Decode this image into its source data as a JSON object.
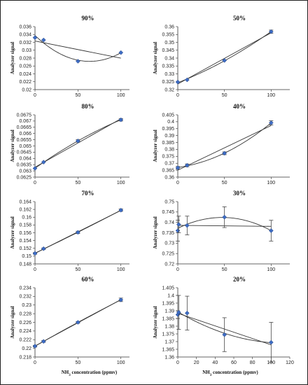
{
  "figure": {
    "xlabel_prefix": "NH",
    "xlabel_sub": "3",
    "xlabel_suffix": " concentration (ppmv)"
  },
  "chart_data": [
    {
      "type": "scatter",
      "title": "90%",
      "ylabel": "Analyzer signal",
      "xlim": [
        0,
        120
      ],
      "ylim": [
        0.02,
        0.036
      ],
      "yticks": [
        "0.02",
        "0.022",
        "0.024",
        "0.026",
        "0.028",
        "0.03",
        "0.032",
        "0.034",
        "0.036"
      ],
      "x": [
        0,
        10,
        50,
        100
      ],
      "y": [
        0.0332,
        0.0326,
        0.0272,
        0.0294
      ],
      "err": [
        0,
        0,
        0,
        0
      ],
      "fit": "quadratic"
    },
    {
      "type": "scatter",
      "title": "50%",
      "ylabel": "Analyzer signal",
      "xlim": [
        0,
        120
      ],
      "ylim": [
        0.32,
        0.36
      ],
      "yticks": [
        "0.32",
        "0.325",
        "0.33",
        "0.335",
        "0.34",
        "0.345",
        "0.35",
        "0.355",
        "0.36"
      ],
      "x": [
        0,
        10,
        50,
        100
      ],
      "y": [
        0.3248,
        0.3262,
        0.3385,
        0.3568
      ],
      "err": [
        0,
        0,
        0,
        0.001
      ],
      "fit": "quadratic"
    },
    {
      "type": "scatter",
      "title": "80%",
      "ylabel": "Analyzer signal",
      "xlim": [
        0,
        120
      ],
      "ylim": [
        0.0625,
        0.0675
      ],
      "yticks": [
        "0.0625",
        "0.063",
        "0.0635",
        "0.064",
        "0.0645",
        "0.065",
        "0.0655",
        "0.066",
        "0.0665",
        "0.067",
        "0.0675"
      ],
      "x": [
        0,
        10,
        50,
        100
      ],
      "y": [
        0.0632,
        0.0637,
        0.0654,
        0.0671
      ],
      "err": [
        0,
        0,
        0.0001,
        0.0001
      ],
      "fit": "quadratic"
    },
    {
      "type": "scatter",
      "title": "40%",
      "ylabel": "Analyzer signal",
      "xlim": [
        0,
        120
      ],
      "ylim": [
        0.36,
        0.405
      ],
      "yticks": [
        "0.36",
        "0.365",
        "0.37",
        "0.375",
        "0.38",
        "0.385",
        "0.39",
        "0.395",
        "0.4",
        "0.405"
      ],
      "x": [
        0,
        10,
        50,
        100
      ],
      "y": [
        0.3667,
        0.3685,
        0.3772,
        0.3992
      ],
      "err": [
        0.001,
        0.001,
        0.001,
        0.0015
      ],
      "fit": "quadratic"
    },
    {
      "type": "scatter",
      "title": "70%",
      "ylabel": "Analyzer signal",
      "xlim": [
        0,
        120
      ],
      "ylim": [
        0.148,
        0.164
      ],
      "yticks": [
        "0.148",
        "0.15",
        "0.152",
        "0.154",
        "0.156",
        "0.158",
        "0.16",
        "0.162",
        "0.164"
      ],
      "x": [
        0,
        10,
        50,
        100
      ],
      "y": [
        0.1507,
        0.1519,
        0.1561,
        0.1618
      ],
      "err": [
        0.0002,
        0.0002,
        0.0003,
        0.0003
      ],
      "fit": "quadratic"
    },
    {
      "type": "scatter",
      "title": "30%",
      "ylabel": "Analyzer signal",
      "xlim": [
        0,
        120
      ],
      "ylim": [
        0.72,
        0.75
      ],
      "yticks": [
        "0.72",
        "0.725",
        "0.73",
        "0.735",
        "0.74",
        "0.745",
        "0.75"
      ],
      "x": [
        0,
        1,
        10,
        50,
        100
      ],
      "y": [
        0.736,
        0.739,
        0.7385,
        0.7425,
        0.736
      ],
      "err": [
        0.005,
        0.004,
        0.0045,
        0.005,
        0.005
      ],
      "fit": "both"
    },
    {
      "type": "scatter",
      "title": "60%",
      "ylabel": "Analyzer signal",
      "xlim": [
        0,
        120
      ],
      "ylim": [
        0.218,
        0.234
      ],
      "yticks": [
        "0.218",
        "0.22",
        "0.222",
        "0.224",
        "0.226",
        "0.228",
        "0.23",
        "0.232",
        "0.234"
      ],
      "x": [
        0,
        10,
        50,
        100
      ],
      "y": [
        0.2205,
        0.2216,
        0.226,
        0.2312
      ],
      "err": [
        0.0002,
        0.0002,
        0.0002,
        0.0004
      ],
      "fit": "quadratic"
    },
    {
      "type": "scatter",
      "title": "20%",
      "ylabel": "Analyzer signal",
      "xlim": [
        0,
        120
      ],
      "ylim": [
        1.36,
        1.405
      ],
      "yticks": [
        "1.36",
        "1.365",
        "1.37",
        "1.375",
        "1.38",
        "1.385",
        "1.39",
        "1.395",
        "1.4",
        "1.405"
      ],
      "xticks": [
        "0",
        "20",
        "40",
        "60",
        "80",
        "100",
        "120"
      ],
      "x": [
        0,
        1,
        10,
        50,
        100
      ],
      "y": [
        1.3875,
        1.389,
        1.3885,
        1.3745,
        1.3695
      ],
      "err": [
        0.0025,
        0.011,
        0.011,
        0.011,
        0.013
      ],
      "fit": "both"
    }
  ]
}
